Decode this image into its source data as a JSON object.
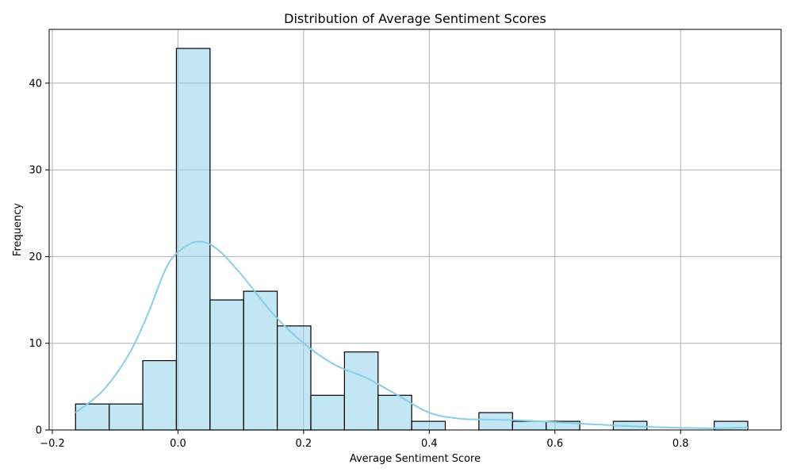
{
  "chart_data": {
    "type": "bar",
    "title": "Distribution of Average Sentiment Scores",
    "xlabel": "Average Sentiment Score",
    "ylabel": "Frequency",
    "xlim": [
      -0.205,
      0.96
    ],
    "ylim": [
      0,
      46.2
    ],
    "grid": true,
    "bar_color": "#87ceeb",
    "bar_opacity": 0.5,
    "kde_color": "#87ceeb",
    "x_ticks": [
      {
        "value": -0.2,
        "label": "−0.2"
      },
      {
        "value": 0.0,
        "label": "0.0"
      },
      {
        "value": 0.2,
        "label": "0.2"
      },
      {
        "value": 0.4,
        "label": "0.4"
      },
      {
        "value": 0.6,
        "label": "0.6"
      },
      {
        "value": 0.8,
        "label": "0.8"
      }
    ],
    "y_ticks": [
      {
        "value": 0,
        "label": "0"
      },
      {
        "value": 10,
        "label": "10"
      },
      {
        "value": 20,
        "label": "20"
      },
      {
        "value": 30,
        "label": "30"
      },
      {
        "value": 40,
        "label": "40"
      }
    ],
    "bins": [
      {
        "x0": -0.163,
        "x1": -0.1095,
        "count": 3
      },
      {
        "x0": -0.1095,
        "x1": -0.056,
        "count": 3
      },
      {
        "x0": -0.056,
        "x1": -0.0025,
        "count": 8
      },
      {
        "x0": -0.0025,
        "x1": 0.051,
        "count": 44
      },
      {
        "x0": 0.051,
        "x1": 0.1045,
        "count": 15
      },
      {
        "x0": 0.1045,
        "x1": 0.158,
        "count": 16
      },
      {
        "x0": 0.158,
        "x1": 0.2115,
        "count": 12
      },
      {
        "x0": 0.2115,
        "x1": 0.265,
        "count": 4
      },
      {
        "x0": 0.265,
        "x1": 0.3185,
        "count": 9
      },
      {
        "x0": 0.3185,
        "x1": 0.372,
        "count": 4
      },
      {
        "x0": 0.372,
        "x1": 0.4255,
        "count": 1
      },
      {
        "x0": 0.4255,
        "x1": 0.479,
        "count": 0
      },
      {
        "x0": 0.479,
        "x1": 0.5325,
        "count": 2
      },
      {
        "x0": 0.5325,
        "x1": 0.586,
        "count": 1
      },
      {
        "x0": 0.586,
        "x1": 0.6395,
        "count": 1
      },
      {
        "x0": 0.6395,
        "x1": 0.693,
        "count": 0
      },
      {
        "x0": 0.693,
        "x1": 0.7465,
        "count": 1
      },
      {
        "x0": 0.7465,
        "x1": 0.8,
        "count": 0
      },
      {
        "x0": 0.8,
        "x1": 0.8535,
        "count": 0
      },
      {
        "x0": 0.8535,
        "x1": 0.907,
        "count": 1
      }
    ],
    "kde": {
      "x": [
        -0.163,
        -0.12,
        -0.08,
        -0.05,
        -0.02,
        0.0,
        0.03,
        0.06,
        0.1,
        0.15,
        0.2,
        0.25,
        0.3,
        0.35,
        0.4,
        0.45,
        0.5,
        0.55,
        0.6,
        0.65,
        0.7,
        0.75,
        0.8,
        0.85,
        0.907
      ],
      "y": [
        2.0,
        4.5,
        8.5,
        13.0,
        18.5,
        20.5,
        21.7,
        21.0,
        18.0,
        13.5,
        10.0,
        7.5,
        6.0,
        4.0,
        2.0,
        1.3,
        1.2,
        1.1,
        0.9,
        0.7,
        0.5,
        0.35,
        0.25,
        0.2,
        0.3
      ]
    }
  }
}
